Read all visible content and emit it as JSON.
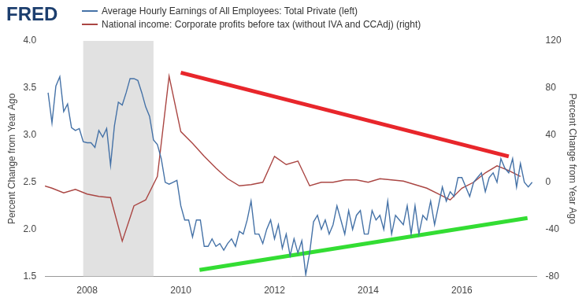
{
  "chart_data": {
    "type": "line",
    "logo": "FRED",
    "legend": "top left",
    "grid": false,
    "xlim": [
      2007.1,
      2017.6
    ],
    "xticks": [
      2008,
      2010,
      2012,
      2014,
      2016
    ],
    "ylim": [
      1.5,
      4
    ],
    "yticks": [
      1.5,
      {
        "value": 2,
        "label": "2.0"
      },
      2.5,
      {
        "value": 3,
        "label": "3.0"
      },
      3.5,
      {
        "value": 4,
        "label": "4.0"
      }
    ],
    "y2lim": [
      -80,
      120
    ],
    "y2ticks": [
      -80,
      -40,
      0,
      40,
      80,
      120
    ],
    "y_label": "Percent Change from Year Ago",
    "y2_label": "Percent Change from Year Ago",
    "shaded_periods": [
      {
        "start": 2007.917,
        "end": 2009.417,
        "color": "#e1e1e1"
      }
    ],
    "series": [
      {
        "name": "Average Hourly Earnings of All Employees: Total Private (left)",
        "color": "#4572a7",
        "axis": "y",
        "x": [
          2007.167,
          2007.25,
          2007.333,
          2007.417,
          2007.5,
          2007.583,
          2007.667,
          2007.75,
          2007.833,
          2007.917,
          2008,
          2008.083,
          2008.167,
          2008.25,
          2008.333,
          2008.417,
          2008.5,
          2008.583,
          2008.667,
          2008.75,
          2008.833,
          2008.917,
          2009,
          2009.083,
          2009.167,
          2009.25,
          2009.333,
          2009.417,
          2009.5,
          2009.583,
          2009.667,
          2009.75,
          2009.833,
          2009.917,
          2010,
          2010.083,
          2010.167,
          2010.25,
          2010.333,
          2010.417,
          2010.5,
          2010.583,
          2010.667,
          2010.75,
          2010.833,
          2010.917,
          2011,
          2011.083,
          2011.167,
          2011.25,
          2011.333,
          2011.417,
          2011.5,
          2011.583,
          2011.667,
          2011.75,
          2011.833,
          2011.917,
          2012,
          2012.083,
          2012.167,
          2012.25,
          2012.333,
          2012.417,
          2012.5,
          2012.583,
          2012.667,
          2012.75,
          2012.833,
          2012.917,
          2013,
          2013.083,
          2013.167,
          2013.25,
          2013.333,
          2013.417,
          2013.5,
          2013.583,
          2013.667,
          2013.75,
          2013.833,
          2013.917,
          2014,
          2014.083,
          2014.167,
          2014.25,
          2014.333,
          2014.417,
          2014.5,
          2014.583,
          2014.667,
          2014.75,
          2014.833,
          2014.917,
          2015,
          2015.083,
          2015.167,
          2015.25,
          2015.333,
          2015.417,
          2015.5,
          2015.583,
          2015.667,
          2015.75,
          2015.833,
          2015.917,
          2016,
          2016.083,
          2016.167,
          2016.25,
          2016.333,
          2016.417,
          2016.5,
          2016.583,
          2016.667,
          2016.75,
          2016.833,
          2016.917,
          2017,
          2017.083,
          2017.167,
          2017.25,
          2017.333,
          2017.417,
          2017.5
        ],
        "values": [
          3.45,
          3.13,
          3.52,
          3.62,
          3.25,
          3.33,
          3.08,
          3.05,
          3.07,
          2.93,
          2.92,
          2.92,
          2.87,
          3.05,
          2.98,
          3.07,
          2.68,
          3.1,
          3.35,
          3.32,
          3.45,
          3.6,
          3.6,
          3.58,
          3.45,
          3.3,
          3.2,
          2.95,
          2.9,
          2.75,
          2.5,
          2.48,
          2.5,
          2.52,
          2.25,
          2.1,
          2.1,
          1.92,
          2.1,
          2.1,
          1.82,
          1.82,
          1.9,
          1.82,
          1.85,
          1.78,
          1.85,
          1.9,
          1.82,
          1.98,
          1.95,
          2.1,
          2.3,
          1.95,
          1.95,
          1.85,
          2.0,
          2.1,
          1.9,
          2.05,
          1.8,
          1.95,
          1.72,
          1.9,
          1.75,
          1.88,
          1.52,
          1.75,
          2.08,
          2.15,
          2.0,
          2.1,
          1.95,
          2.05,
          2.25,
          2.1,
          1.95,
          2.2,
          2.0,
          2.15,
          2.2,
          1.95,
          1.95,
          2.2,
          2.1,
          2.15,
          2.0,
          2.3,
          1.95,
          2.15,
          2.1,
          2.05,
          2.25,
          1.95,
          2.25,
          1.95,
          2.15,
          2.1,
          2.3,
          2.05,
          2.25,
          2.45,
          2.3,
          2.4,
          2.35,
          2.55,
          2.55,
          2.45,
          2.35,
          2.5,
          2.55,
          2.6,
          2.4,
          2.55,
          2.6,
          2.5,
          2.75,
          2.65,
          2.6,
          2.75,
          2.45,
          2.7,
          2.5,
          2.45,
          2.5
        ]
      },
      {
        "name": "National income: Corporate profits before tax (without IVA and CCAdj) (right)",
        "color": "#aa4643",
        "axis": "y2",
        "x": [
          2007,
          2007.25,
          2007.5,
          2007.75,
          2008,
          2008.25,
          2008.5,
          2008.75,
          2009,
          2009.25,
          2009.5,
          2009.75,
          2010,
          2010.25,
          2010.5,
          2010.75,
          2011,
          2011.25,
          2011.5,
          2011.75,
          2012,
          2012.25,
          2012.5,
          2012.75,
          2013,
          2013.25,
          2013.5,
          2013.75,
          2014,
          2014.25,
          2014.5,
          2014.75,
          2015,
          2015.25,
          2015.5,
          2015.75,
          2016,
          2016.25,
          2016.5,
          2016.75,
          2017,
          2017.25
        ],
        "values": [
          -2,
          -5,
          -9,
          -6,
          -10,
          -12,
          -13,
          -50,
          -20,
          -15,
          5,
          90,
          43,
          33,
          22,
          12,
          3,
          -3,
          -2,
          0,
          22,
          15,
          18,
          -3,
          0,
          0,
          2,
          2,
          0,
          3,
          2,
          1,
          -2,
          -5,
          -10,
          -15,
          -5,
          0,
          8,
          14,
          10,
          5
        ]
      }
    ],
    "trend_lines": [
      {
        "color": "#e8262b",
        "axis": "y2",
        "x": [
          2010,
          2017
        ],
        "values": [
          93,
          22
        ]
      },
      {
        "color": "#33dd33",
        "axis": "y",
        "x": [
          2010.4,
          2017.4
        ],
        "values": [
          1.57,
          2.12
        ]
      }
    ]
  }
}
